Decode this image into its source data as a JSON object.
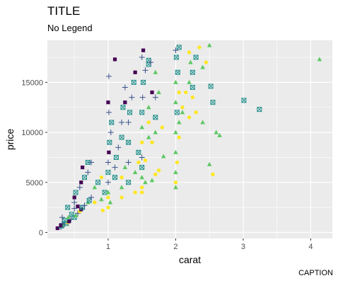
{
  "chart_data": {
    "type": "scatter",
    "title": "TITLE",
    "subtitle": "No Legend",
    "caption": "CAPTION",
    "xlabel": "carat",
    "ylabel": "price",
    "xlim": [
      0.1,
      4.32
    ],
    "ylim": [
      -600,
      19200
    ],
    "x_ticks": [
      1,
      2,
      3,
      4
    ],
    "y_ticks": [
      0,
      5000,
      10000,
      15000
    ],
    "x_tick_labels": [
      "1",
      "2",
      "3",
      "4"
    ],
    "y_tick_labels": [
      "0",
      "5000",
      "10000",
      "15000"
    ],
    "grid": true,
    "legend": "none",
    "background": "#ebebeb",
    "grid_color": "#ffffff",
    "palette": [
      "#440154",
      "#3b528b",
      "#21908c",
      "#5dc863",
      "#fde725"
    ],
    "shapes": [
      "square",
      "plus",
      "square-x",
      "triangle",
      "circle"
    ],
    "points": [
      [
        0.25,
        420,
        0
      ],
      [
        0.3,
        520,
        1
      ],
      [
        0.31,
        650,
        2
      ],
      [
        0.33,
        710,
        3
      ],
      [
        0.35,
        820,
        1
      ],
      [
        0.38,
        900,
        2
      ],
      [
        0.4,
        1000,
        4
      ],
      [
        0.42,
        1100,
        0
      ],
      [
        0.45,
        1300,
        1
      ],
      [
        0.5,
        1500,
        2
      ],
      [
        0.52,
        1700,
        3
      ],
      [
        0.55,
        1900,
        1
      ],
      [
        0.58,
        2100,
        4
      ],
      [
        0.6,
        2300,
        0
      ],
      [
        0.62,
        2500,
        2
      ],
      [
        0.65,
        2700,
        1
      ],
      [
        0.7,
        3000,
        3
      ],
      [
        0.72,
        3200,
        2
      ],
      [
        0.75,
        3500,
        1
      ],
      [
        0.3,
        700,
        0
      ],
      [
        0.32,
        900,
        1
      ],
      [
        0.36,
        1200,
        2
      ],
      [
        0.41,
        1500,
        3
      ],
      [
        0.46,
        1800,
        2
      ],
      [
        0.5,
        2400,
        1
      ],
      [
        0.55,
        2600,
        0
      ],
      [
        0.32,
        1500,
        1
      ],
      [
        0.4,
        2500,
        2
      ],
      [
        0.5,
        3000,
        1
      ],
      [
        0.5,
        3500,
        0
      ],
      [
        0.52,
        4000,
        2
      ],
      [
        0.58,
        4500,
        1
      ],
      [
        0.6,
        5000,
        0
      ],
      [
        0.65,
        5500,
        2
      ],
      [
        0.7,
        6000,
        1
      ],
      [
        0.62,
        6500,
        0
      ],
      [
        0.7,
        7000,
        2
      ],
      [
        0.75,
        7000,
        1
      ],
      [
        0.8,
        4500,
        3
      ],
      [
        0.85,
        5000,
        2
      ],
      [
        0.9,
        5500,
        4
      ],
      [
        0.8,
        3000,
        4
      ],
      [
        0.9,
        3300,
        3
      ],
      [
        0.95,
        4000,
        2
      ],
      [
        1.0,
        4000,
        3
      ],
      [
        1.0,
        5000,
        1
      ],
      [
        1.0,
        6000,
        2
      ],
      [
        1.0,
        7000,
        1
      ],
      [
        1.01,
        8000,
        0
      ],
      [
        1.02,
        9000,
        2
      ],
      [
        1.04,
        10000,
        1
      ],
      [
        1.05,
        11000,
        2
      ],
      [
        1.01,
        12000,
        1
      ],
      [
        1.0,
        13000,
        0
      ],
      [
        1.01,
        15600,
        1
      ],
      [
        1.0,
        3500,
        4
      ],
      [
        1.0,
        2500,
        4
      ],
      [
        0.92,
        2200,
        4
      ],
      [
        1.03,
        3000,
        3
      ],
      [
        1.1,
        5500,
        2
      ],
      [
        1.1,
        6500,
        1
      ],
      [
        1.12,
        7500,
        2
      ],
      [
        1.15,
        8500,
        1
      ],
      [
        1.2,
        9500,
        2
      ],
      [
        1.2,
        11000,
        1
      ],
      [
        1.22,
        12500,
        2
      ],
      [
        1.25,
        13000,
        0
      ],
      [
        1.25,
        14500,
        1
      ],
      [
        1.1,
        17300,
        0
      ],
      [
        1.2,
        4500,
        3
      ],
      [
        1.2,
        5500,
        4
      ],
      [
        1.2,
        3500,
        4
      ],
      [
        1.25,
        6500,
        3
      ],
      [
        1.3,
        5000,
        2
      ],
      [
        1.3,
        7000,
        1
      ],
      [
        1.3,
        9000,
        2
      ],
      [
        1.3,
        11000,
        1
      ],
      [
        1.32,
        12000,
        2
      ],
      [
        1.35,
        13500,
        1
      ],
      [
        1.38,
        15000,
        2
      ],
      [
        1.4,
        16000,
        0
      ],
      [
        1.4,
        4000,
        4
      ],
      [
        1.4,
        6000,
        3
      ],
      [
        1.45,
        7000,
        4
      ],
      [
        1.45,
        8000,
        2
      ],
      [
        1.5,
        5500,
        3
      ],
      [
        1.5,
        6500,
        2
      ],
      [
        1.5,
        7500,
        1
      ],
      [
        1.5,
        9000,
        4
      ],
      [
        1.5,
        10500,
        3
      ],
      [
        1.5,
        12000,
        2
      ],
      [
        1.51,
        13500,
        1
      ],
      [
        1.52,
        15000,
        2
      ],
      [
        1.55,
        16200,
        1
      ],
      [
        1.5,
        17500,
        1
      ],
      [
        1.52,
        18200,
        0
      ],
      [
        1.6,
        16800,
        2
      ],
      [
        1.6,
        17200,
        2
      ],
      [
        1.63,
        17000,
        1
      ],
      [
        1.65,
        14000,
        0
      ],
      [
        1.6,
        12500,
        3
      ],
      [
        1.6,
        11000,
        4
      ],
      [
        1.6,
        9500,
        3
      ],
      [
        1.65,
        9000,
        4
      ],
      [
        1.7,
        10000,
        3
      ],
      [
        1.7,
        11500,
        2
      ],
      [
        1.7,
        13500,
        1
      ],
      [
        1.5,
        4000,
        4
      ],
      [
        1.55,
        5000,
        3
      ],
      [
        1.5,
        4500,
        4
      ],
      [
        1.7,
        16000,
        3
      ],
      [
        1.75,
        14000,
        3
      ],
      [
        1.8,
        10500,
        4
      ],
      [
        1.82,
        7600,
        3
      ],
      [
        1.7,
        5800,
        4
      ],
      [
        1.65,
        5200,
        3
      ],
      [
        1.75,
        6200,
        4
      ],
      [
        1.55,
        7200,
        4
      ],
      [
        2.0,
        18200,
        1
      ],
      [
        2.01,
        17500,
        2
      ],
      [
        2.03,
        16000,
        2
      ],
      [
        2.05,
        18500,
        2
      ],
      [
        2.0,
        15000,
        3
      ],
      [
        2.05,
        14000,
        4
      ],
      [
        2.0,
        13000,
        3
      ],
      [
        2.1,
        12500,
        4
      ],
      [
        2.02,
        12000,
        2
      ],
      [
        2.05,
        11000,
        3
      ],
      [
        2.0,
        10000,
        3
      ],
      [
        2.05,
        9500,
        4
      ],
      [
        2.0,
        8000,
        3
      ],
      [
        2.02,
        7000,
        4
      ],
      [
        2.0,
        6000,
        3
      ],
      [
        2.0,
        5000,
        4
      ],
      [
        2.0,
        4500,
        3
      ],
      [
        2.2,
        18000,
        4
      ],
      [
        2.22,
        17000,
        3
      ],
      [
        2.25,
        16000,
        2
      ],
      [
        2.2,
        15000,
        3
      ],
      [
        2.15,
        14000,
        4
      ],
      [
        2.25,
        13500,
        4
      ],
      [
        2.1,
        12000,
        3
      ],
      [
        2.2,
        11500,
        4
      ],
      [
        2.3,
        17500,
        2
      ],
      [
        2.35,
        18500,
        4
      ],
      [
        2.4,
        16500,
        3
      ],
      [
        2.45,
        17000,
        4
      ],
      [
        2.5,
        18700,
        3
      ],
      [
        2.52,
        14600,
        2
      ],
      [
        2.55,
        13000,
        2
      ],
      [
        2.3,
        12000,
        4
      ],
      [
        2.4,
        11000,
        3
      ],
      [
        2.5,
        6800,
        3
      ],
      [
        2.55,
        5800,
        4
      ],
      [
        2.6,
        10000,
        3
      ],
      [
        2.65,
        9700,
        3
      ],
      [
        3.01,
        13200,
        2
      ],
      [
        3.24,
        12300,
        2
      ],
      [
        4.13,
        17300,
        3
      ],
      [
        2.25,
        14500,
        2
      ]
    ]
  }
}
